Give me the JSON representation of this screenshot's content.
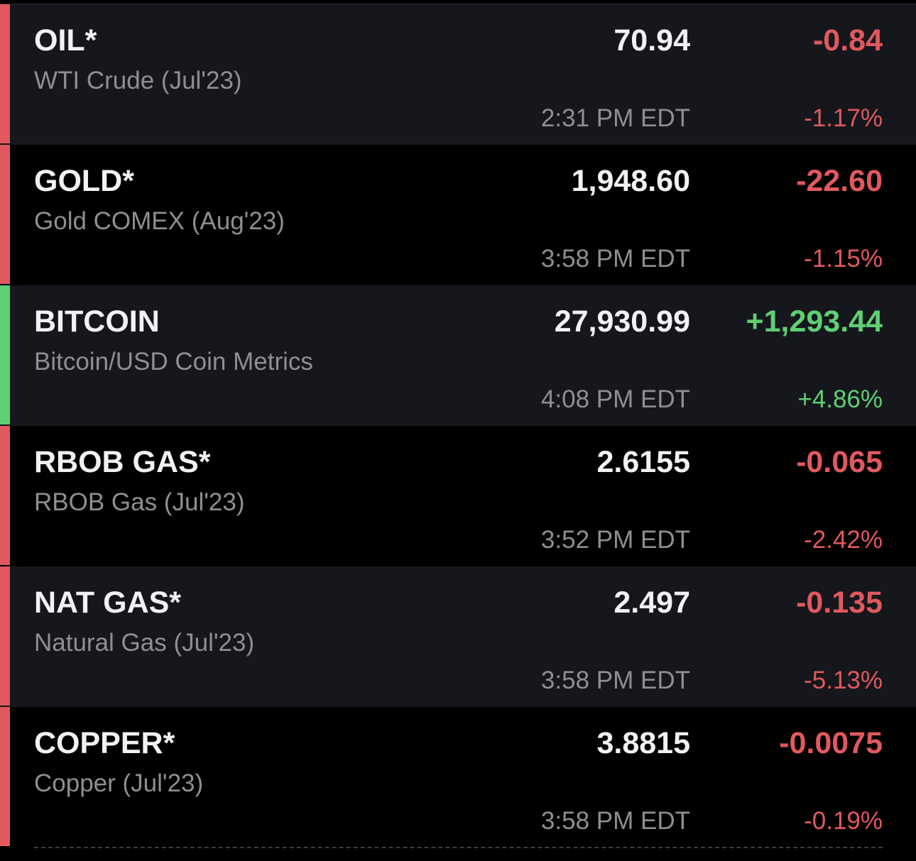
{
  "rows": [
    {
      "symbol": "OIL*",
      "name": "WTI Crude (Jul'23)",
      "price": "70.94",
      "change": "-0.84",
      "time": "2:31 PM EDT",
      "percent": "-1.17%",
      "color": "#e0595e"
    },
    {
      "symbol": "GOLD*",
      "name": "Gold COMEX (Aug'23)",
      "price": "1,948.60",
      "change": "-22.60",
      "time": "3:58 PM EDT",
      "percent": "-1.15%",
      "color": "#e0595e"
    },
    {
      "symbol": "BITCOIN",
      "name": "Bitcoin/USD Coin Metrics",
      "price": "27,930.99",
      "change": "+1,293.44",
      "time": "4:08 PM EDT",
      "percent": "+4.86%",
      "color": "#5fcf73"
    },
    {
      "symbol": "RBOB GAS*",
      "name": "RBOB Gas (Jul'23)",
      "price": "2.6155",
      "change": "-0.065",
      "time": "3:52 PM EDT",
      "percent": "-2.42%",
      "color": "#e0595e"
    },
    {
      "symbol": "NAT GAS*",
      "name": "Natural Gas (Jul'23)",
      "price": "2.497",
      "change": "-0.135",
      "time": "3:58 PM EDT",
      "percent": "-5.13%",
      "color": "#e0595e"
    },
    {
      "symbol": "COPPER*",
      "name": "Copper (Jul'23)",
      "price": "3.8815",
      "change": "-0.0075",
      "time": "3:58 PM EDT",
      "percent": "-0.19%",
      "color": "#e0595e"
    }
  ]
}
